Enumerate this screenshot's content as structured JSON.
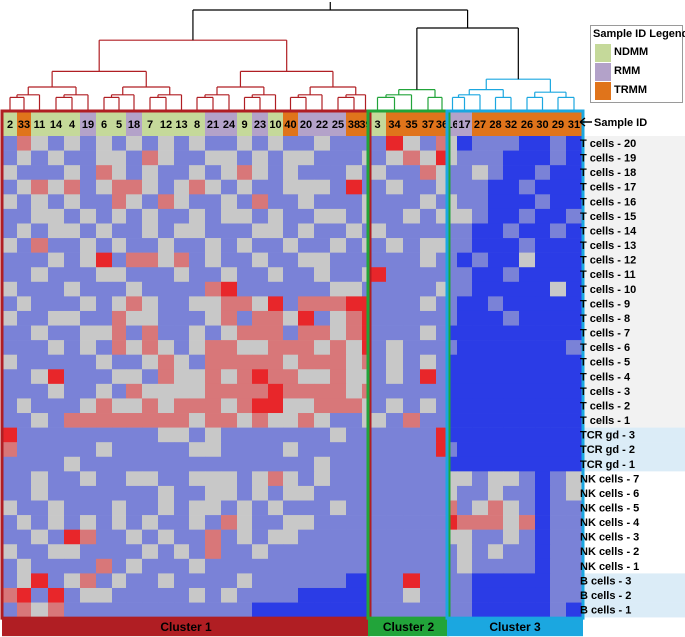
{
  "chart_data": {
    "type": "heatmap",
    "title": "",
    "sample_id_label": "Sample ID",
    "columns": [
      "2",
      "33",
      "11",
      "14",
      "4",
      "19",
      "6",
      "5",
      "18",
      "7",
      "12",
      "13",
      "8",
      "21",
      "24",
      "9",
      "23",
      "10",
      "40",
      "20",
      "22",
      "25",
      "38",
      "39",
      "3",
      "34",
      "35",
      "37",
      "36",
      "16",
      "17",
      "27",
      "28",
      "32",
      "26",
      "30",
      "29",
      "31"
    ],
    "column_groups": [
      "NDMM",
      "TRMM",
      "NDMM",
      "NDMM",
      "NDMM",
      "RMM",
      "NDMM",
      "NDMM",
      "RMM",
      "NDMM",
      "NDMM",
      "NDMM",
      "NDMM",
      "RMM",
      "RMM",
      "NDMM",
      "RMM",
      "NDMM",
      "TRMM",
      "RMM",
      "RMM",
      "RMM",
      "TRMM",
      "TRMM",
      "NDMM",
      "TRMM",
      "TRMM",
      "TRMM",
      "TRMM",
      "RMM",
      "RMM",
      "TRMM",
      "TRMM",
      "TRMM",
      "TRMM",
      "TRMM",
      "TRMM",
      "TRMM"
    ],
    "rows": [
      "T cells - 20",
      "T cells - 19",
      "T cells - 18",
      "T cells - 17",
      "T cells - 16",
      "T cells - 15",
      "T cells - 14",
      "T cells - 13",
      "T cells - 12",
      "T cells - 11",
      "T cells - 10",
      "T cells - 9",
      "T cells - 8",
      "T cells - 7",
      "T cells - 6",
      "T cells - 5",
      "T cells - 4",
      "T cells - 3",
      "T cells - 2",
      "T cells - 1",
      "TCR gd - 3",
      "TCR gd - 2",
      "TCR gd - 1",
      "NK cells - 7",
      "NK cells - 6",
      "NK cells - 5",
      "NK cells - 4",
      "NK cells - 3",
      "NK cells - 2",
      "NK cells - 1",
      "B cells - 3",
      "B cells - 2",
      "B cells - 1"
    ],
    "row_groups": [
      "T cells",
      "T cells",
      "T cells",
      "T cells",
      "T cells",
      "T cells",
      "T cells",
      "T cells",
      "T cells",
      "T cells",
      "T cells",
      "T cells",
      "T cells",
      "T cells",
      "T cells",
      "T cells",
      "T cells",
      "T cells",
      "T cells",
      "T cells",
      "TCR gd",
      "TCR gd",
      "TCR gd",
      "NK cells",
      "NK cells",
      "NK cells",
      "NK cells",
      "NK cells",
      "NK cells",
      "NK cells",
      "B cells",
      "B cells",
      "B cells"
    ],
    "clusters": [
      {
        "name": "Cluster 1",
        "start": 0,
        "end": 23,
        "color": "#b01e23"
      },
      {
        "name": "Cluster 2",
        "start": 24,
        "end": 28,
        "color": "#22a43a"
      },
      {
        "name": "Cluster 3",
        "start": 29,
        "end": 37,
        "color": "#1ba7e0"
      }
    ],
    "legend": {
      "title": "Sample ID Legend",
      "entries": [
        {
          "label": "NDMM",
          "color": "#c5d99a"
        },
        {
          "label": "RMM",
          "color": "#b3a2c9"
        },
        {
          "label": "TRMM",
          "color": "#e0741b"
        }
      ]
    },
    "color_scale": {
      "low": "#2b3ce6",
      "mid": "#c8c8c8",
      "high": "#e8262a",
      "range": [
        -2,
        2
      ]
    },
    "values": [
      [
        -1,
        1,
        0,
        -1,
        0,
        -1,
        0,
        -1,
        0,
        -1,
        0,
        -1,
        0,
        -1,
        -1,
        0,
        -1,
        0,
        -1,
        -1,
        0,
        -1,
        -1,
        -1,
        -1,
        2,
        0,
        -1,
        1,
        0,
        -2,
        -1,
        -1,
        -1,
        -2,
        -2,
        -1,
        -2
      ],
      [
        -1,
        0,
        -1,
        0,
        -1,
        -1,
        0,
        0,
        -1,
        1,
        0,
        -1,
        -1,
        0,
        0,
        -1,
        0,
        -1,
        0,
        0,
        -1,
        -1,
        -1,
        0,
        -1,
        0,
        1,
        0,
        2,
        0,
        -1,
        -1,
        -1,
        -2,
        -2,
        -2,
        -1,
        -2
      ],
      [
        0,
        -1,
        -1,
        -1,
        0,
        -1,
        1,
        0,
        -1,
        0,
        -1,
        -1,
        0,
        -1,
        0,
        1,
        0,
        -1,
        0,
        -1,
        -1,
        -1,
        0,
        -1,
        0,
        -1,
        -1,
        1,
        0,
        -1,
        -1,
        0,
        -1,
        -2,
        -2,
        -1,
        -2,
        -2
      ],
      [
        -1,
        0,
        1,
        0,
        1,
        -1,
        0,
        1,
        1,
        0,
        -1,
        0,
        1,
        0,
        -1,
        0,
        -1,
        -1,
        0,
        0,
        0,
        -1,
        2,
        -1,
        -1,
        0,
        -1,
        -1,
        0,
        -1,
        -1,
        -1,
        -2,
        -2,
        -1,
        -2,
        -2,
        -2
      ],
      [
        0,
        -1,
        0,
        -1,
        0,
        -1,
        -1,
        1,
        0,
        -1,
        1,
        0,
        -1,
        -1,
        0,
        -1,
        1,
        -1,
        -1,
        0,
        -1,
        -1,
        -1,
        0,
        -1,
        -1,
        -1,
        0,
        -1,
        0,
        -1,
        -1,
        -2,
        -2,
        -2,
        -1,
        -2,
        -2
      ],
      [
        -1,
        -1,
        0,
        0,
        -1,
        0,
        -1,
        0,
        -1,
        0,
        -1,
        -1,
        0,
        -1,
        0,
        0,
        -1,
        0,
        -1,
        -1,
        0,
        0,
        -1,
        0,
        -1,
        -1,
        0,
        -1,
        0,
        0,
        0,
        -1,
        -2,
        -2,
        -1,
        -2,
        -2,
        -1
      ],
      [
        -1,
        0,
        -1,
        0,
        0,
        -1,
        0,
        -1,
        -1,
        0,
        -1,
        0,
        0,
        -1,
        -1,
        -1,
        0,
        0,
        -1,
        0,
        -1,
        -1,
        0,
        -1,
        0,
        -1,
        -1,
        -1,
        -1,
        -1,
        -1,
        -2,
        -2,
        -1,
        -2,
        -2,
        -1,
        -2
      ],
      [
        0,
        -1,
        1,
        -1,
        -1,
        0,
        -1,
        0,
        -1,
        -1,
        0,
        -1,
        -1,
        0,
        -1,
        0,
        -1,
        -1,
        0,
        -1,
        -1,
        0,
        -1,
        0,
        -1,
        0,
        -1,
        0,
        0,
        -1,
        -1,
        -2,
        -2,
        -2,
        -1,
        -2,
        -2,
        -2
      ],
      [
        -1,
        -1,
        -1,
        0,
        -1,
        0,
        2,
        -1,
        1,
        1,
        0,
        1,
        -1,
        0,
        -1,
        -1,
        0,
        -1,
        -1,
        0,
        0,
        -1,
        -1,
        -1,
        -1,
        -1,
        -1,
        0,
        -1,
        -1,
        -2,
        -1,
        -2,
        -2,
        0,
        -2,
        -2,
        -2
      ],
      [
        -1,
        -1,
        0,
        -1,
        -1,
        -1,
        0,
        0,
        -1,
        -1,
        -1,
        0,
        -1,
        -1,
        0,
        -1,
        -1,
        0,
        -1,
        -1,
        0,
        -1,
        -1,
        0,
        2,
        -1,
        -1,
        -1,
        -1,
        -1,
        -1,
        -2,
        -2,
        -1,
        -2,
        -2,
        -2,
        -2
      ],
      [
        0,
        -1,
        -1,
        -1,
        0,
        -1,
        -1,
        -1,
        0,
        -1,
        -1,
        -1,
        -1,
        1,
        2,
        -1,
        -1,
        -1,
        -1,
        -1,
        -1,
        0,
        0,
        -1,
        -1,
        -1,
        -1,
        -1,
        0,
        -1,
        -1,
        -2,
        -2,
        -2,
        -2,
        -2,
        0,
        -2
      ],
      [
        -1,
        0,
        -1,
        -1,
        -1,
        0,
        -1,
        0,
        1,
        0,
        -1,
        -1,
        0,
        0,
        1,
        1,
        0,
        2,
        -1,
        1,
        1,
        1,
        2,
        2,
        -1,
        -1,
        -1,
        0,
        -1,
        -1,
        -2,
        -2,
        -1,
        -2,
        -2,
        -2,
        -2,
        -2
      ],
      [
        0,
        -1,
        -1,
        0,
        0,
        -1,
        -1,
        1,
        0,
        0,
        -1,
        -1,
        -1,
        0,
        1,
        -1,
        1,
        1,
        0,
        2,
        -1,
        0,
        1,
        2,
        -1,
        -1,
        -1,
        -1,
        -1,
        -1,
        -2,
        -2,
        -2,
        -1,
        -2,
        -2,
        -2,
        -2
      ],
      [
        -1,
        -1,
        0,
        -1,
        -1,
        0,
        0,
        1,
        -1,
        1,
        -1,
        -1,
        0,
        -1,
        0,
        1,
        1,
        1,
        -1,
        1,
        1,
        0,
        1,
        2,
        -1,
        -1,
        -1,
        0,
        -1,
        -2,
        -2,
        -2,
        -2,
        -2,
        -2,
        -2,
        -2,
        -2
      ],
      [
        -1,
        -1,
        -1,
        0,
        -1,
        0,
        -1,
        1,
        0,
        1,
        0,
        -1,
        0,
        1,
        1,
        0,
        0,
        1,
        1,
        1,
        0,
        1,
        0,
        2,
        -1,
        0,
        -1,
        -1,
        -1,
        -1,
        -2,
        -2,
        -2,
        -2,
        -2,
        -2,
        -2,
        -1
      ],
      [
        0,
        -1,
        -1,
        -1,
        -1,
        -1,
        0,
        -1,
        -1,
        0,
        1,
        0,
        -1,
        1,
        1,
        1,
        1,
        1,
        0,
        1,
        1,
        1,
        0,
        1,
        -1,
        0,
        -1,
        0,
        -1,
        -2,
        -2,
        -2,
        -2,
        -2,
        -2,
        -2,
        -2,
        -2
      ],
      [
        -1,
        -1,
        0,
        2,
        -1,
        -1,
        -1,
        0,
        0,
        -1,
        1,
        0,
        0,
        1,
        0,
        1,
        2,
        1,
        1,
        0,
        0,
        1,
        0,
        0,
        -1,
        0,
        -1,
        2,
        -1,
        -2,
        -2,
        -2,
        -2,
        -2,
        -2,
        -2,
        -2,
        -2
      ],
      [
        -1,
        -1,
        -1,
        0,
        -1,
        -1,
        0,
        -1,
        1,
        0,
        0,
        0,
        0,
        1,
        1,
        1,
        1,
        2,
        1,
        1,
        1,
        1,
        0,
        1,
        -1,
        -1,
        -1,
        -1,
        -1,
        -2,
        -2,
        -2,
        -2,
        -2,
        -2,
        -2,
        -2,
        -2
      ],
      [
        -1,
        0,
        -1,
        -1,
        -1,
        0,
        1,
        0,
        0,
        1,
        0,
        1,
        1,
        1,
        0,
        1,
        2,
        2,
        0,
        0,
        1,
        1,
        1,
        0,
        -1,
        0,
        -1,
        0,
        -1,
        -2,
        -2,
        -2,
        -2,
        -2,
        -2,
        -2,
        -2,
        -2
      ],
      [
        -1,
        -1,
        0,
        -1,
        1,
        1,
        1,
        1,
        1,
        1,
        1,
        1,
        0,
        1,
        1,
        0,
        1,
        0,
        0,
        1,
        0,
        -1,
        -1,
        0,
        0,
        -1,
        1,
        -1,
        -1,
        -2,
        -2,
        -2,
        -2,
        -2,
        -2,
        -2,
        -2,
        -2
      ],
      [
        2,
        -1,
        -1,
        -1,
        -1,
        -1,
        -1,
        -1,
        -1,
        -1,
        0,
        0,
        -1,
        0,
        -1,
        -1,
        -1,
        -1,
        -1,
        -1,
        -1,
        0,
        -1,
        -1,
        -1,
        -1,
        -1,
        -1,
        2,
        -2,
        -2,
        -2,
        -2,
        -2,
        -2,
        -2,
        -2,
        -2
      ],
      [
        1,
        -1,
        -1,
        -1,
        -1,
        -1,
        0,
        -1,
        -1,
        -1,
        -1,
        -1,
        0,
        0,
        -1,
        -1,
        -1,
        -1,
        0,
        -1,
        -1,
        -1,
        -1,
        -1,
        -1,
        -1,
        -1,
        -1,
        2,
        -1,
        -2,
        -2,
        -2,
        -2,
        -2,
        -2,
        -2,
        -2
      ],
      [
        -1,
        -1,
        -1,
        -1,
        0,
        -1,
        -1,
        -1,
        -1,
        -1,
        -1,
        -1,
        -1,
        -1,
        -1,
        -1,
        -1,
        -1,
        -1,
        -1,
        0,
        -1,
        -1,
        -1,
        -1,
        -1,
        -1,
        -1,
        -1,
        -2,
        -2,
        -2,
        -2,
        -2,
        -2,
        -2,
        -2,
        -2
      ],
      [
        -1,
        -1,
        0,
        -1,
        -1,
        0,
        -1,
        -1,
        0,
        0,
        -1,
        -1,
        0,
        0,
        0,
        -1,
        0,
        1,
        0,
        -1,
        0,
        -1,
        -1,
        -1,
        -1,
        -1,
        -1,
        -1,
        -1,
        0,
        0,
        -1,
        0,
        0,
        -1,
        -2,
        -1,
        0
      ],
      [
        -1,
        -1,
        0,
        -1,
        -1,
        -1,
        -1,
        -1,
        -1,
        -1,
        0,
        -1,
        -1,
        0,
        0,
        -1,
        0,
        -1,
        0,
        0,
        -1,
        -1,
        -1,
        -1,
        -1,
        -1,
        -1,
        -1,
        -1,
        0,
        -1,
        -1,
        0,
        -1,
        -1,
        -2,
        -1,
        0
      ],
      [
        0,
        -1,
        -1,
        0,
        -1,
        -1,
        -1,
        0,
        -1,
        -1,
        0,
        -1,
        0,
        0,
        -1,
        0,
        -1,
        0,
        -1,
        -1,
        -1,
        0,
        -1,
        -1,
        -1,
        -1,
        -1,
        -1,
        -1,
        1,
        -1,
        0,
        1,
        0,
        -1,
        -2,
        -1,
        -1
      ],
      [
        -1,
        0,
        -1,
        0,
        -1,
        0,
        -1,
        0,
        -1,
        0,
        -1,
        -1,
        0,
        -1,
        1,
        0,
        -1,
        -1,
        0,
        0,
        -1,
        -1,
        -1,
        -1,
        -1,
        -1,
        -1,
        -1,
        -1,
        2,
        1,
        1,
        1,
        0,
        1,
        -2,
        -1,
        -1
      ],
      [
        -1,
        -1,
        0,
        -1,
        2,
        1,
        -1,
        -1,
        0,
        -1,
        0,
        -1,
        -1,
        1,
        -1,
        0,
        -1,
        0,
        0,
        -1,
        -1,
        -1,
        -1,
        -1,
        -1,
        -1,
        -1,
        -1,
        -1,
        0,
        0,
        -1,
        -1,
        0,
        -1,
        -2,
        -1,
        -1
      ],
      [
        0,
        -1,
        -1,
        0,
        0,
        -1,
        -1,
        -1,
        -1,
        0,
        -1,
        0,
        -1,
        1,
        -1,
        -1,
        0,
        -1,
        -1,
        -1,
        -1,
        -1,
        -1,
        -1,
        -1,
        -1,
        -1,
        -1,
        -1,
        -1,
        0,
        -1,
        0,
        -1,
        -1,
        -2,
        -1,
        -1
      ],
      [
        -1,
        0,
        -1,
        -1,
        -1,
        -1,
        1,
        -1,
        0,
        -1,
        -1,
        -1,
        0,
        -1,
        -1,
        -1,
        -1,
        -1,
        -1,
        -1,
        -1,
        -1,
        -1,
        -1,
        -1,
        -1,
        -1,
        -1,
        -1,
        -1,
        0,
        -1,
        -1,
        -1,
        -1,
        -2,
        -1,
        -1
      ],
      [
        -1,
        0,
        2,
        -1,
        0,
        1,
        -1,
        0,
        -1,
        -1,
        0,
        -1,
        -1,
        -1,
        -1,
        0,
        -1,
        -1,
        -1,
        -1,
        -1,
        -1,
        -2,
        -2,
        -1,
        -1,
        2,
        -1,
        -1,
        -1,
        -1,
        -2,
        -2,
        -2,
        -2,
        -2,
        -1,
        -1
      ],
      [
        1,
        2,
        -1,
        2,
        -1,
        0,
        0,
        -1,
        -1,
        -1,
        -1,
        -1,
        0,
        -1,
        0,
        -1,
        -1,
        -1,
        -1,
        -2,
        -2,
        -2,
        -2,
        -2,
        -1,
        -1,
        0,
        -1,
        -1,
        -1,
        -1,
        -2,
        -2,
        -2,
        -2,
        -2,
        -1,
        -1
      ],
      [
        -1,
        1,
        0,
        1,
        -1,
        -1,
        -1,
        -1,
        -1,
        -1,
        -1,
        -1,
        -1,
        -1,
        -1,
        -1,
        -2,
        -2,
        -2,
        -2,
        -2,
        -2,
        -2,
        -2,
        -1,
        -1,
        -1,
        -1,
        -1,
        -1,
        -1,
        -2,
        -2,
        -2,
        -2,
        -2,
        -1,
        -2
      ]
    ]
  }
}
